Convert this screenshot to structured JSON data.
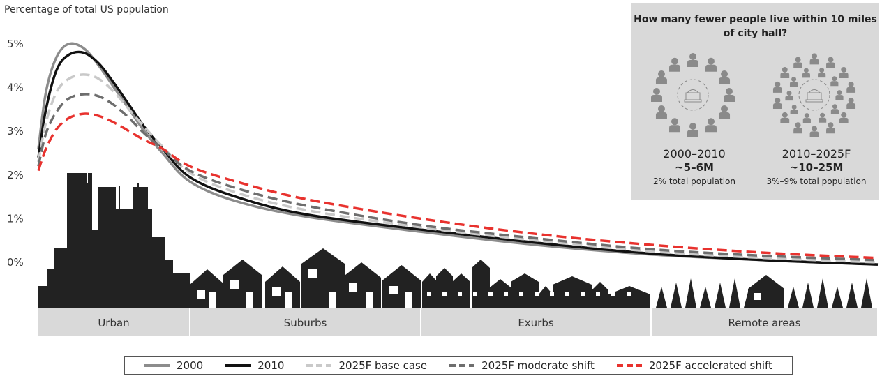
{
  "chart_data": {
    "type": "line",
    "ylabel": "Percentage of total US population",
    "yticks": [
      "0%",
      "1%",
      "2%",
      "3%",
      "4%",
      "5%"
    ],
    "ylim": [
      0,
      5
    ],
    "x_categories": [
      "Urban",
      "Suburbs",
      "Exurbs",
      "Remote areas"
    ],
    "colors": {
      "s2000": "#8c8c8c",
      "s2010": "#111111",
      "base": "#c9c9c9",
      "moderate": "#6e6e6e",
      "accelerated": "#e8322e",
      "band": "#d9d9d9",
      "silhouette": "#222222"
    },
    "series": [
      {
        "name": "2000",
        "style": "solid",
        "color": "#8c8c8c",
        "x": [
          0,
          0.05,
          0.12,
          0.2,
          0.3,
          0.4,
          0.5,
          0.6,
          0.7,
          0.82,
          1.0,
          1.2,
          1.5,
          2.0,
          2.5,
          3.0,
          3.5,
          4.0
        ],
        "y": [
          2.6,
          3.9,
          4.7,
          5.0,
          4.9,
          4.5,
          4.0,
          3.5,
          3.0,
          2.5,
          1.85,
          1.4,
          1.05,
          0.7,
          0.4,
          0.18,
          0.05,
          -0.05
        ]
      },
      {
        "name": "2010",
        "style": "solid",
        "color": "#111111",
        "x": [
          0,
          0.05,
          0.12,
          0.2,
          0.3,
          0.4,
          0.5,
          0.6,
          0.7,
          0.82,
          1.0,
          1.2,
          1.5,
          2.0,
          2.5,
          3.0,
          3.5,
          4.0
        ],
        "y": [
          2.4,
          3.5,
          4.4,
          4.75,
          4.8,
          4.55,
          4.1,
          3.6,
          3.1,
          2.6,
          1.95,
          1.5,
          1.1,
          0.75,
          0.45,
          0.2,
          0.05,
          -0.05
        ]
      },
      {
        "name": "2025F base case",
        "style": "dashed",
        "color": "#c9c9c9",
        "x": [
          0,
          0.05,
          0.12,
          0.2,
          0.3,
          0.4,
          0.5,
          0.6,
          0.7,
          0.82,
          1.0,
          1.2,
          1.5,
          2.0,
          2.5,
          3.0,
          3.5,
          4.0
        ],
        "y": [
          2.3,
          3.2,
          3.9,
          4.2,
          4.3,
          4.2,
          3.9,
          3.5,
          3.1,
          2.65,
          2.05,
          1.6,
          1.2,
          0.8,
          0.5,
          0.25,
          0.1,
          0.0
        ]
      },
      {
        "name": "2025F moderate shift",
        "style": "dashed",
        "color": "#6e6e6e",
        "x": [
          0,
          0.05,
          0.12,
          0.2,
          0.3,
          0.4,
          0.5,
          0.6,
          0.7,
          0.82,
          1.0,
          1.2,
          1.5,
          2.0,
          2.5,
          3.0,
          3.5,
          4.0
        ],
        "y": [
          2.2,
          2.95,
          3.45,
          3.75,
          3.85,
          3.8,
          3.6,
          3.3,
          2.95,
          2.6,
          2.1,
          1.7,
          1.3,
          0.85,
          0.55,
          0.3,
          0.15,
          0.05
        ]
      },
      {
        "name": "2025F accelerated shift",
        "style": "dashed",
        "color": "#e8322e",
        "x": [
          0,
          0.05,
          0.12,
          0.2,
          0.3,
          0.4,
          0.5,
          0.6,
          0.7,
          0.82,
          1.0,
          1.2,
          1.5,
          2.0,
          2.5,
          3.0,
          3.5,
          4.0
        ],
        "y": [
          2.1,
          2.6,
          3.05,
          3.3,
          3.4,
          3.35,
          3.2,
          3.0,
          2.8,
          2.6,
          2.2,
          1.85,
          1.45,
          1.0,
          0.65,
          0.4,
          0.22,
          0.1
        ]
      }
    ]
  },
  "inset": {
    "title": "How many fewer people live within 10 miles of city hall?",
    "left": {
      "period": "2000–2010",
      "value": "~5–6M",
      "note": "2% total population"
    },
    "right": {
      "period": "2010–2025F",
      "value": "~10–25M",
      "note": "3%–9% total population"
    },
    "icons": {
      "person": "person-icon",
      "cityhall": "city-hall-icon"
    }
  },
  "legend": [
    {
      "label": "2000",
      "color": "#8c8c8c",
      "style": "solid"
    },
    {
      "label": "2010",
      "color": "#111111",
      "style": "solid"
    },
    {
      "label": "2025F base case",
      "color": "#c9c9c9",
      "style": "dashed"
    },
    {
      "label": "2025F moderate shift",
      "color": "#6e6e6e",
      "style": "dashed"
    },
    {
      "label": "2025F accelerated shift",
      "color": "#e8322e",
      "style": "dashed"
    }
  ]
}
